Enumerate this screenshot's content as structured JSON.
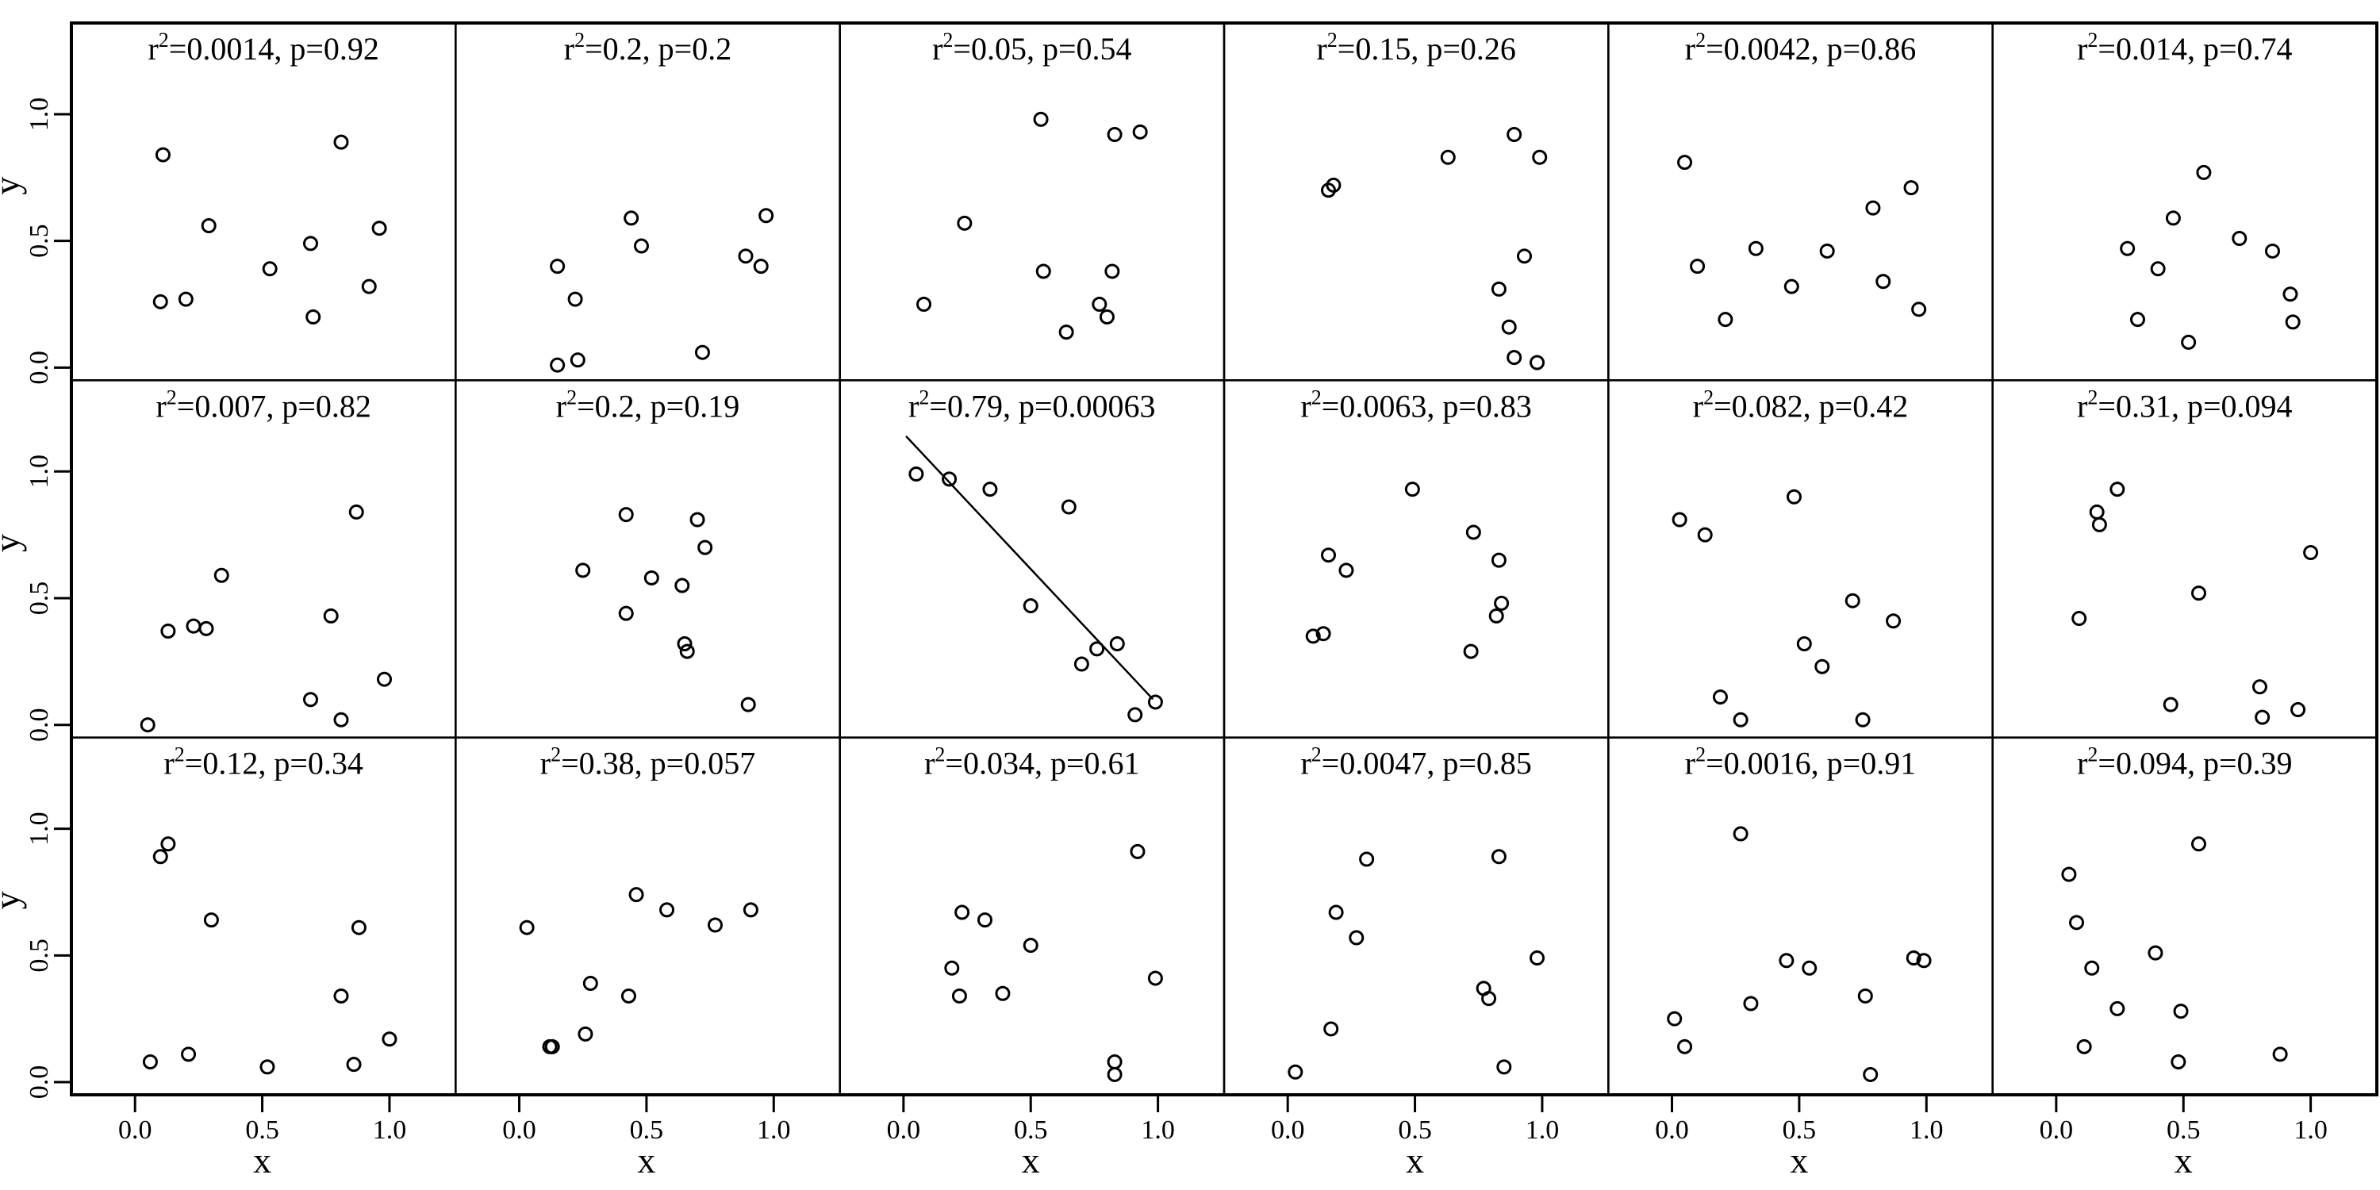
{
  "figure": {
    "title_prefix": "r",
    "title_sup": "2",
    "xlabel": "x",
    "ylabel": "y",
    "xtick_labels": [
      "0.0",
      "0.5",
      "1.0"
    ],
    "ytick_labels": [
      "0.0",
      "0.5",
      "1.0"
    ],
    "colors": {
      "points": "#000000",
      "frame": "#000000",
      "background": "#ffffff"
    }
  },
  "chart_data": [
    {
      "type": "scatter",
      "title": "=0.0014, p=0.92",
      "r2": 0.0014,
      "p": 0.92,
      "xlim": [
        -0.25,
        1.26
      ],
      "ylim": [
        -0.05,
        1.36
      ],
      "xticks": [
        0,
        0.5,
        1
      ],
      "yticks": [
        0,
        0.5,
        1
      ],
      "x": [
        0.11,
        0.81,
        0.29,
        0.96,
        0.69,
        0.53,
        0.92,
        0.1,
        0.2,
        0.7
      ],
      "y": [
        0.84,
        0.89,
        0.56,
        0.55,
        0.49,
        0.39,
        0.32,
        0.26,
        0.27,
        0.2
      ]
    },
    {
      "type": "scatter",
      "title": "=0.2, p=0.2",
      "r2": 0.2,
      "p": 0.2,
      "xlim": [
        -0.25,
        1.26
      ],
      "ylim": [
        -0.05,
        1.36
      ],
      "xticks": [
        0,
        0.5,
        1
      ],
      "yticks": [
        0,
        0.5,
        1
      ],
      "x": [
        0.44,
        0.48,
        0.97,
        0.89,
        0.95,
        0.15,
        0.22,
        0.15,
        0.23,
        0.72
      ],
      "y": [
        0.59,
        0.48,
        0.6,
        0.44,
        0.4,
        0.4,
        0.27,
        0.01,
        0.03,
        0.06
      ]
    },
    {
      "type": "scatter",
      "title": "=0.05, p=0.54",
      "r2": 0.05,
      "p": 0.54,
      "xlim": [
        -0.25,
        1.26
      ],
      "ylim": [
        -0.05,
        1.36
      ],
      "xticks": [
        0,
        0.5,
        1
      ],
      "yticks": [
        0,
        0.5,
        1
      ],
      "x": [
        0.54,
        0.83,
        0.93,
        0.24,
        0.55,
        0.82,
        0.08,
        0.77,
        0.8,
        0.64
      ],
      "y": [
        0.98,
        0.92,
        0.93,
        0.57,
        0.38,
        0.38,
        0.25,
        0.25,
        0.2,
        0.14
      ]
    },
    {
      "type": "scatter",
      "title": "=0.15, p=0.26",
      "r2": 0.15,
      "p": 0.26,
      "xlim": [
        -0.25,
        1.26
      ],
      "ylim": [
        -0.05,
        1.36
      ],
      "xticks": [
        0,
        0.5,
        1
      ],
      "yticks": [
        0,
        0.5,
        1
      ],
      "x": [
        0.89,
        0.63,
        0.99,
        0.16,
        0.18,
        0.93,
        0.83,
        0.87,
        0.89,
        0.98
      ],
      "y": [
        0.92,
        0.83,
        0.83,
        0.7,
        0.72,
        0.44,
        0.31,
        0.16,
        0.04,
        0.02
      ]
    },
    {
      "type": "scatter",
      "title": "=0.0042, p=0.86",
      "r2": 0.0042,
      "p": 0.86,
      "xlim": [
        -0.25,
        1.26
      ],
      "ylim": [
        -0.05,
        1.36
      ],
      "xticks": [
        0,
        0.5,
        1
      ],
      "yticks": [
        0,
        0.5,
        1
      ],
      "x": [
        0.05,
        0.94,
        0.79,
        0.33,
        0.61,
        0.1,
        0.47,
        0.83,
        0.97,
        0.21
      ],
      "y": [
        0.81,
        0.71,
        0.63,
        0.47,
        0.46,
        0.4,
        0.32,
        0.34,
        0.23,
        0.19
      ]
    },
    {
      "type": "scatter",
      "title": "=0.014, p=0.74",
      "r2": 0.014,
      "p": 0.74,
      "xlim": [
        -0.25,
        1.26
      ],
      "ylim": [
        -0.05,
        1.36
      ],
      "xticks": [
        0,
        0.5,
        1
      ],
      "yticks": [
        0,
        0.5,
        1
      ],
      "x": [
        0.58,
        0.46,
        0.72,
        0.28,
        0.85,
        0.4,
        0.92,
        0.32,
        0.93,
        0.52
      ],
      "y": [
        0.77,
        0.59,
        0.51,
        0.47,
        0.46,
        0.39,
        0.29,
        0.19,
        0.18,
        0.1
      ]
    },
    {
      "type": "scatter",
      "title": "=0.007, p=0.82",
      "r2": 0.007,
      "p": 0.82,
      "xlim": [
        -0.25,
        1.26
      ],
      "ylim": [
        -0.05,
        1.36
      ],
      "xticks": [
        0,
        0.5,
        1
      ],
      "yticks": [
        0,
        0.5,
        1
      ],
      "x": [
        0.87,
        0.34,
        0.77,
        0.13,
        0.23,
        0.28,
        0.98,
        0.69,
        0.81,
        0.05
      ],
      "y": [
        0.84,
        0.59,
        0.43,
        0.37,
        0.39,
        0.38,
        0.18,
        0.1,
        0.02,
        0.0
      ]
    },
    {
      "type": "scatter",
      "title": "=0.2, p=0.19",
      "r2": 0.2,
      "p": 0.19,
      "xlim": [
        -0.25,
        1.26
      ],
      "ylim": [
        -0.05,
        1.36
      ],
      "xticks": [
        0,
        0.5,
        1
      ],
      "yticks": [
        0,
        0.5,
        1
      ],
      "x": [
        0.42,
        0.7,
        0.73,
        0.25,
        0.52,
        0.64,
        0.42,
        0.65,
        0.66,
        0.9
      ],
      "y": [
        0.83,
        0.81,
        0.7,
        0.61,
        0.58,
        0.55,
        0.44,
        0.32,
        0.29,
        0.08
      ]
    },
    {
      "type": "scatter",
      "title": "=0.79, p=0.00063",
      "r2": 0.79,
      "p": 0.00063,
      "xlim": [
        -0.25,
        1.26
      ],
      "ylim": [
        -0.05,
        1.36
      ],
      "xticks": [
        0,
        0.5,
        1
      ],
      "yticks": [
        0,
        0.5,
        1
      ],
      "x": [
        0.05,
        0.18,
        0.34,
        0.65,
        0.5,
        0.84,
        0.76,
        0.7,
        0.99,
        0.91
      ],
      "y": [
        0.99,
        0.97,
        0.93,
        0.86,
        0.47,
        0.32,
        0.3,
        0.24,
        0.09,
        0.04
      ],
      "fit_line": {
        "intercept": 1.15,
        "slope": -1.07,
        "x_range": [
          0.01,
          0.98
        ]
      }
    },
    {
      "type": "scatter",
      "title": "=0.0063, p=0.83",
      "r2": 0.0063,
      "p": 0.83,
      "xlim": [
        -0.25,
        1.26
      ],
      "ylim": [
        -0.05,
        1.36
      ],
      "xticks": [
        0,
        0.5,
        1
      ],
      "yticks": [
        0,
        0.5,
        1
      ],
      "x": [
        0.49,
        0.73,
        0.16,
        0.23,
        0.83,
        0.84,
        0.82,
        0.1,
        0.14,
        0.72
      ],
      "y": [
        0.93,
        0.76,
        0.67,
        0.61,
        0.65,
        0.48,
        0.43,
        0.35,
        0.36,
        0.29
      ]
    },
    {
      "type": "scatter",
      "title": "=0.082, p=0.42",
      "r2": 0.082,
      "p": 0.42,
      "xlim": [
        -0.25,
        1.26
      ],
      "ylim": [
        -0.05,
        1.36
      ],
      "xticks": [
        0,
        0.5,
        1
      ],
      "yticks": [
        0,
        0.5,
        1
      ],
      "x": [
        0.48,
        0.03,
        0.13,
        0.71,
        0.87,
        0.52,
        0.59,
        0.19,
        0.27,
        0.75
      ],
      "y": [
        0.9,
        0.81,
        0.75,
        0.49,
        0.41,
        0.32,
        0.23,
        0.11,
        0.02,
        0.02
      ]
    },
    {
      "type": "scatter",
      "title": "=0.31, p=0.094",
      "r2": 0.31,
      "p": 0.094,
      "xlim": [
        -0.25,
        1.26
      ],
      "ylim": [
        -0.05,
        1.36
      ],
      "xticks": [
        0,
        0.5,
        1
      ],
      "yticks": [
        0,
        0.5,
        1
      ],
      "x": [
        0.24,
        0.16,
        0.17,
        1.0,
        0.56,
        0.09,
        0.8,
        0.45,
        0.95,
        0.81
      ],
      "y": [
        0.93,
        0.84,
        0.79,
        0.68,
        0.52,
        0.42,
        0.15,
        0.08,
        0.06,
        0.03
      ]
    },
    {
      "type": "scatter",
      "title": "=0.12, p=0.34",
      "r2": 0.12,
      "p": 0.34,
      "xlim": [
        -0.25,
        1.26
      ],
      "ylim": [
        -0.05,
        1.36
      ],
      "xticks": [
        0,
        0.5,
        1
      ],
      "yticks": [
        0,
        0.5,
        1
      ],
      "x": [
        0.13,
        0.1,
        0.3,
        0.88,
        0.81,
        1.0,
        0.21,
        0.06,
        0.52,
        0.86
      ],
      "y": [
        0.94,
        0.89,
        0.64,
        0.61,
        0.34,
        0.17,
        0.11,
        0.08,
        0.06,
        0.07
      ]
    },
    {
      "type": "scatter",
      "title": "=0.38, p=0.057",
      "r2": 0.38,
      "p": 0.057,
      "xlim": [
        -0.25,
        1.26
      ],
      "ylim": [
        -0.05,
        1.36
      ],
      "xticks": [
        0,
        0.5,
        1
      ],
      "yticks": [
        0,
        0.5,
        1
      ],
      "x": [
        0.46,
        0.58,
        0.91,
        0.03,
        0.77,
        0.28,
        0.43,
        0.26,
        0.12,
        0.13
      ],
      "y": [
        0.74,
        0.68,
        0.68,
        0.61,
        0.62,
        0.39,
        0.34,
        0.19,
        0.14,
        0.14
      ]
    },
    {
      "type": "scatter",
      "title": "=0.034, p=0.61",
      "r2": 0.034,
      "p": 0.61,
      "xlim": [
        -0.25,
        1.26
      ],
      "ylim": [
        -0.05,
        1.36
      ],
      "xticks": [
        0,
        0.5,
        1
      ],
      "yticks": [
        0,
        0.5,
        1
      ],
      "x": [
        0.92,
        0.23,
        0.32,
        0.5,
        0.19,
        0.99,
        0.22,
        0.39,
        0.83,
        0.83
      ],
      "y": [
        0.91,
        0.67,
        0.64,
        0.54,
        0.45,
        0.41,
        0.34,
        0.35,
        0.08,
        0.03
      ]
    },
    {
      "type": "scatter",
      "title": "=0.0047, p=0.85",
      "r2": 0.0047,
      "p": 0.85,
      "xlim": [
        -0.25,
        1.26
      ],
      "ylim": [
        -0.05,
        1.36
      ],
      "xticks": [
        0,
        0.5,
        1
      ],
      "yticks": [
        0,
        0.5,
        1
      ],
      "x": [
        0.31,
        0.83,
        0.19,
        0.27,
        0.98,
        0.77,
        0.79,
        0.17,
        0.03,
        0.85
      ],
      "y": [
        0.88,
        0.89,
        0.67,
        0.57,
        0.49,
        0.37,
        0.33,
        0.21,
        0.04,
        0.06
      ]
    },
    {
      "type": "scatter",
      "title": "=0.0016, p=0.91",
      "r2": 0.0016,
      "p": 0.91,
      "xlim": [
        -0.25,
        1.26
      ],
      "ylim": [
        -0.05,
        1.36
      ],
      "xticks": [
        0,
        0.5,
        1
      ],
      "yticks": [
        0,
        0.5,
        1
      ],
      "x": [
        0.27,
        0.45,
        0.54,
        0.95,
        0.99,
        0.76,
        0.31,
        0.01,
        0.05,
        0.78
      ],
      "y": [
        0.98,
        0.48,
        0.45,
        0.49,
        0.48,
        0.34,
        0.31,
        0.25,
        0.14,
        0.03
      ]
    },
    {
      "type": "scatter",
      "title": "=0.094, p=0.39",
      "r2": 0.094,
      "p": 0.39,
      "xlim": [
        -0.25,
        1.26
      ],
      "ylim": [
        -0.05,
        1.36
      ],
      "xticks": [
        0,
        0.5,
        1
      ],
      "yticks": [
        0,
        0.5,
        1
      ],
      "x": [
        0.56,
        0.05,
        0.08,
        0.39,
        0.14,
        0.24,
        0.49,
        0.11,
        0.48,
        0.88
      ],
      "y": [
        0.94,
        0.82,
        0.63,
        0.51,
        0.45,
        0.29,
        0.28,
        0.14,
        0.08,
        0.11
      ]
    }
  ]
}
